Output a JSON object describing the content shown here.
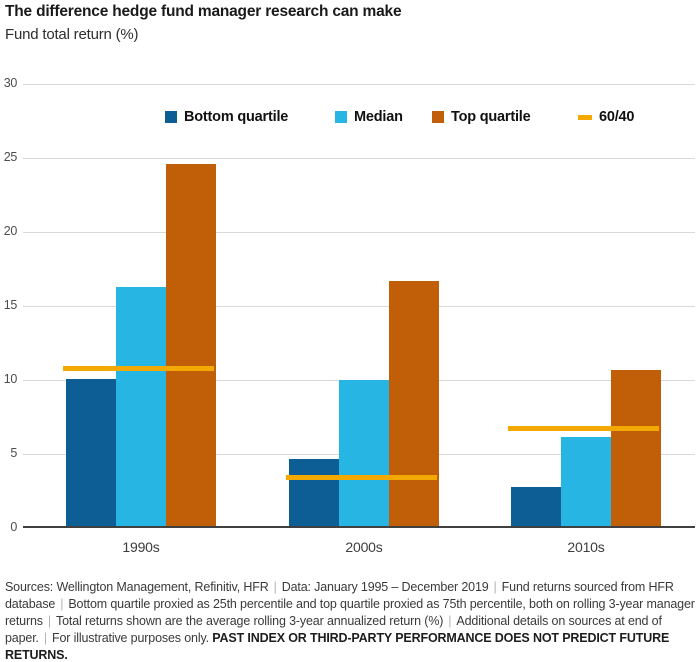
{
  "header": {
    "title": "The difference hedge fund manager research can make",
    "subtitle": "Fund total return (%)"
  },
  "chart_data": {
    "type": "bar",
    "title": "The difference hedge fund manager research can make",
    "ylabel": "Fund total return (%)",
    "categories": [
      "1990s",
      "2000s",
      "2010s"
    ],
    "series": [
      {
        "name": "Bottom quartile",
        "color": "#0e5e96",
        "values": [
          10.0,
          4.6,
          2.7
        ]
      },
      {
        "name": "Median",
        "color": "#27b5e4",
        "values": [
          16.2,
          9.9,
          6.1
        ]
      },
      {
        "name": "Top quartile",
        "color": "#c05f08",
        "values": [
          24.5,
          16.6,
          10.6
        ]
      }
    ],
    "overlay_line": {
      "name": "60/40",
      "color": "#f3a900",
      "values": [
        10.8,
        3.4,
        6.7
      ]
    },
    "ylim": [
      0,
      30
    ],
    "yticks": [
      0,
      5,
      10,
      15,
      20,
      25,
      30
    ],
    "grid": true,
    "legend_position": "top",
    "gridline_color": "#d9d9d9",
    "axis_color": "#404040"
  },
  "footer": {
    "separator": "|",
    "segments": [
      "Sources: Wellington Management, Refinitiv, HFR",
      "Data: January 1995 – December 2019",
      "Fund returns sourced from HFR database",
      "Bottom quartile proxied as 25th percentile and top quartile proxied as 75th percentile, both on rolling 3-year manager returns",
      "Total returns shown are the average rolling 3-year annualized return (%)",
      "Additional details on sources at end of paper.",
      "For illustrative purposes only."
    ],
    "bold_text": "PAST INDEX OR THIRD-PARTY PERFORMANCE DOES NOT PREDICT FUTURE RETURNS."
  }
}
